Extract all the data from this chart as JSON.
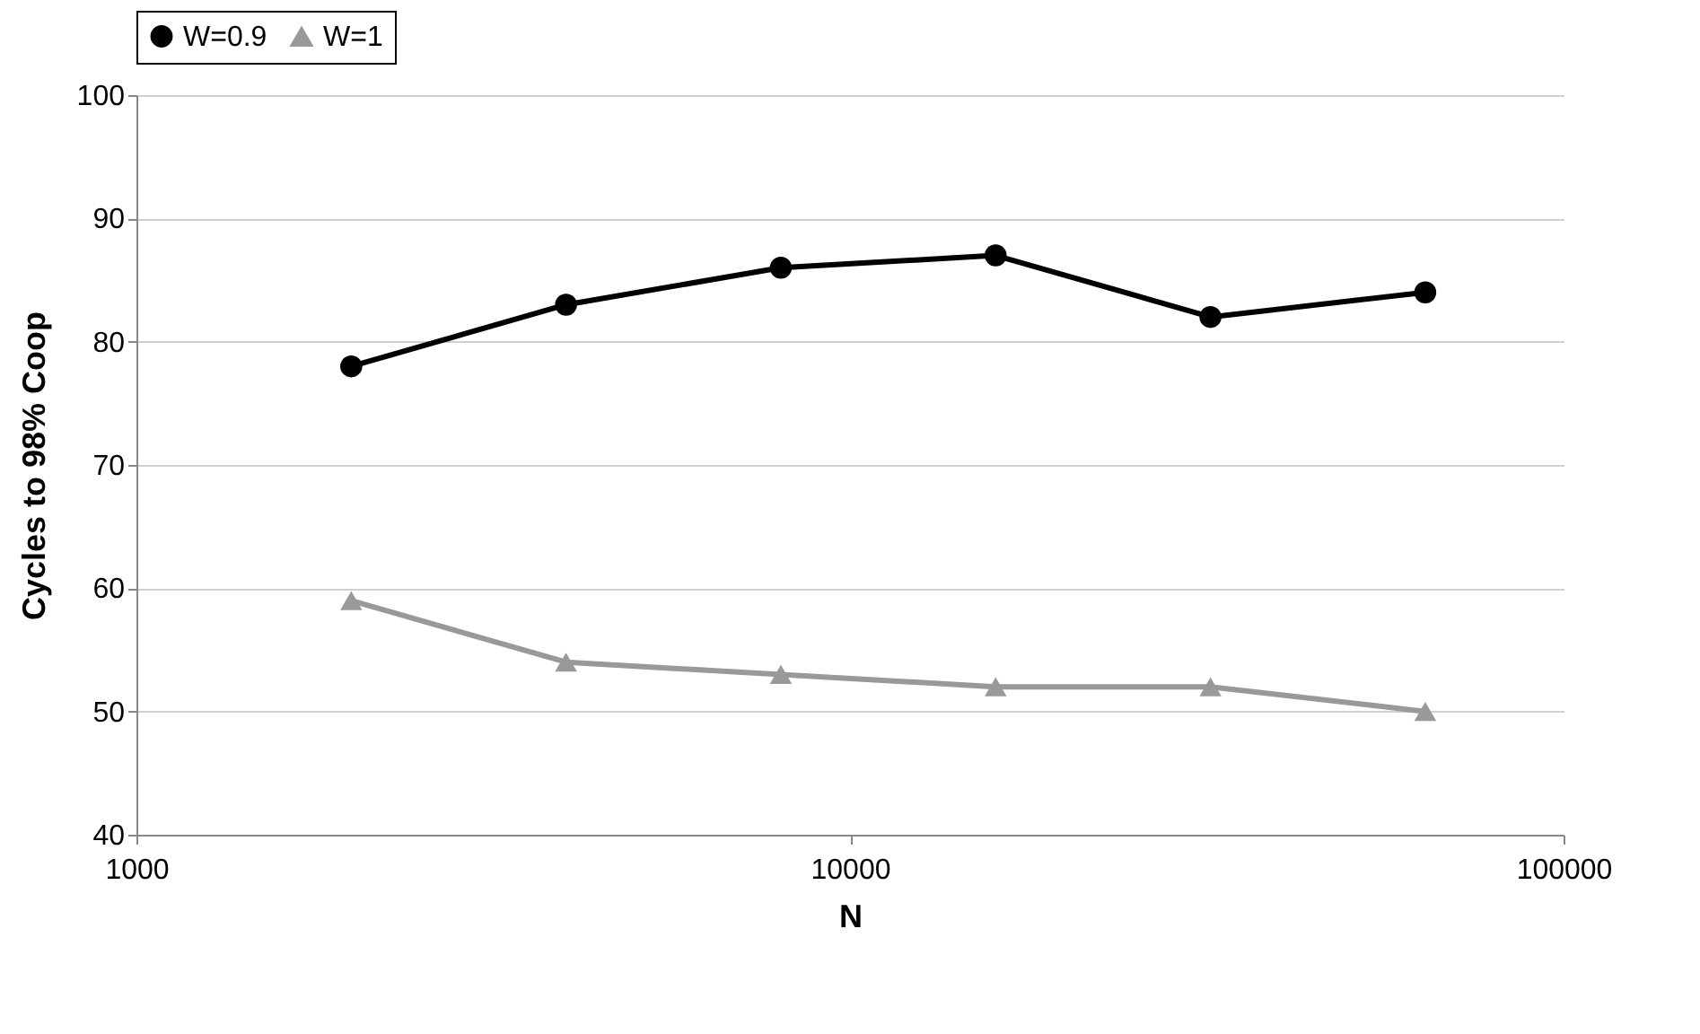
{
  "chart_data": {
    "type": "line",
    "xlabel": "N",
    "ylabel": "Cycles to 98% Coop",
    "x": [
      2000,
      4000,
      8000,
      16000,
      32000,
      64000
    ],
    "series": [
      {
        "name": "W=0.9",
        "color": "#000000",
        "marker": "circle",
        "values": [
          78,
          83,
          86,
          87,
          82,
          84
        ]
      },
      {
        "name": "W=1",
        "color": "#999999",
        "marker": "triangle",
        "values": [
          59,
          54,
          53,
          52,
          52,
          50
        ]
      }
    ],
    "log": "x",
    "xlim": [
      1000,
      100000
    ],
    "xticks": [
      1000,
      10000,
      100000
    ],
    "ylim": [
      40,
      100
    ],
    "yticks": [
      40,
      50,
      60,
      70,
      80,
      90,
      100
    ],
    "grid": "y",
    "legend": "top"
  }
}
